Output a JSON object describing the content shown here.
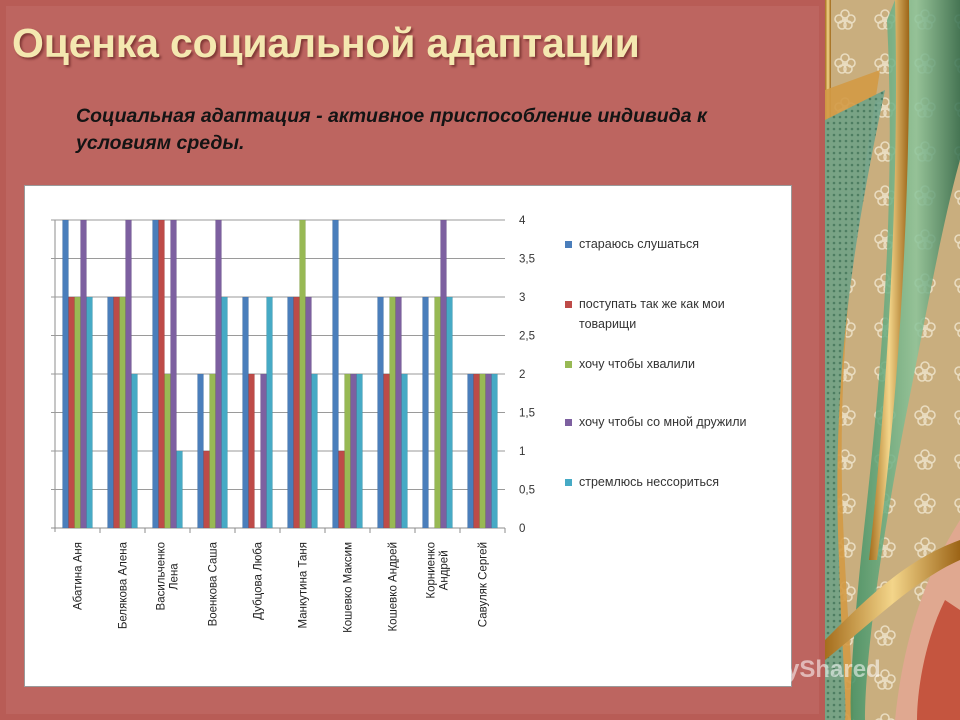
{
  "slide": {
    "title": "Оценка социальной адаптации",
    "subtitle": "Социальная адаптация - активное приспособление индивида к условиям среды.",
    "watermark": "MyShared"
  },
  "colors": {
    "background": "#bd6560",
    "title": "#f4e8b0",
    "series": [
      "#4a7ebb",
      "#be4b48",
      "#98b954",
      "#7d60a0",
      "#46aac5"
    ]
  },
  "chart_data": {
    "type": "bar",
    "categories": [
      "Абатина Аня",
      "Белякова Алена",
      "Васильченко Лена",
      "Военкова Саша",
      "Дубцова Люба",
      "Манкутина Таня",
      "Кошевко Максим",
      "Кошевко Андрей",
      "Корниенко Андрей",
      "Савуляк Сергей"
    ],
    "series": [
      {
        "name": "стараюсь слушаться",
        "values": [
          4,
          3,
          4,
          2,
          3,
          3,
          4,
          3,
          3,
          2
        ]
      },
      {
        "name": "поступать так же как мои товарищи",
        "values": [
          3,
          3,
          4,
          1,
          2,
          3,
          1,
          2,
          0,
          2
        ]
      },
      {
        "name": "хочу чтобы хвалили",
        "values": [
          3,
          3,
          2,
          2,
          0,
          4,
          2,
          3,
          3,
          2
        ]
      },
      {
        "name": "хочу чтобы со мной дружили",
        "values": [
          4,
          4,
          4,
          4,
          2,
          3,
          2,
          3,
          4,
          2
        ]
      },
      {
        "name": "стремлюсь нессориться",
        "values": [
          3,
          2,
          1,
          3,
          3,
          2,
          2,
          2,
          3,
          2
        ]
      }
    ],
    "yticks": [
      "0",
      "0,5",
      "1",
      "1,5",
      "2",
      "2,5",
      "3",
      "3,5",
      "4"
    ],
    "ylim": [
      0,
      4
    ],
    "ytick_step": 0.5,
    "grid": true,
    "legend_position": "right",
    "y_axis_side": "right",
    "category_labels_rotated": true
  }
}
